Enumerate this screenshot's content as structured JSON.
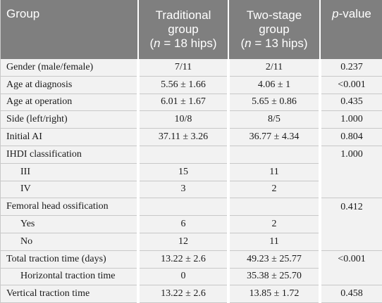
{
  "table": {
    "header": {
      "group": "Group",
      "traditional_line1": "Traditional",
      "traditional_line2": "group",
      "traditional_n": "n",
      "traditional_count": " = 18 hips)",
      "twostage_line1": "Two-stage",
      "twostage_line2": "group",
      "twostage_n": "n",
      "twostage_count": " = 13 hips)",
      "pvalue_italic": "p",
      "pvalue_rest": "-value"
    },
    "rows": [
      {
        "label": "Gender (male/female)",
        "traditional": "7/11",
        "twostage": "2/11",
        "p": "0.237"
      },
      {
        "label": "Age at diagnosis",
        "traditional": "5.56 ± 1.66",
        "twostage": "4.06 ± 1",
        "p": "<0.001"
      },
      {
        "label": "Age at operation",
        "traditional": "6.01 ± 1.67",
        "twostage": "5.65 ± 0.86",
        "p": "0.435"
      },
      {
        "label": "Side (left/right)",
        "traditional": "10/8",
        "twostage": "8/5",
        "p": "1.000"
      },
      {
        "label": "Initial AI",
        "traditional": "37.11 ± 3.26",
        "twostage": "36.77 ± 4.34",
        "p": "0.804"
      },
      {
        "label": "IHDI classification",
        "traditional": "",
        "twostage": "",
        "p": "1.000"
      },
      {
        "label": "III",
        "traditional": "15",
        "twostage": "11",
        "p": ""
      },
      {
        "label": "IV",
        "traditional": "3",
        "twostage": "2",
        "p": ""
      },
      {
        "label": "Femoral head ossification",
        "traditional": "",
        "twostage": "",
        "p": "0.412"
      },
      {
        "label": "Yes",
        "traditional": "6",
        "twostage": "2",
        "p": ""
      },
      {
        "label": "No",
        "traditional": "12",
        "twostage": "11",
        "p": ""
      },
      {
        "label": "Total traction time (days)",
        "traditional": "13.22 ± 2.6",
        "twostage": "49.23 ± 25.77",
        "p": "<0.001"
      },
      {
        "label": "Horizontal traction time",
        "traditional": "0",
        "twostage": "35.38 ± 25.70",
        "p": ""
      },
      {
        "label": "Vertical traction time",
        "traditional": "13.22 ± 2.6",
        "twostage": "13.85 ± 1.72",
        "p": "0.458"
      }
    ]
  }
}
